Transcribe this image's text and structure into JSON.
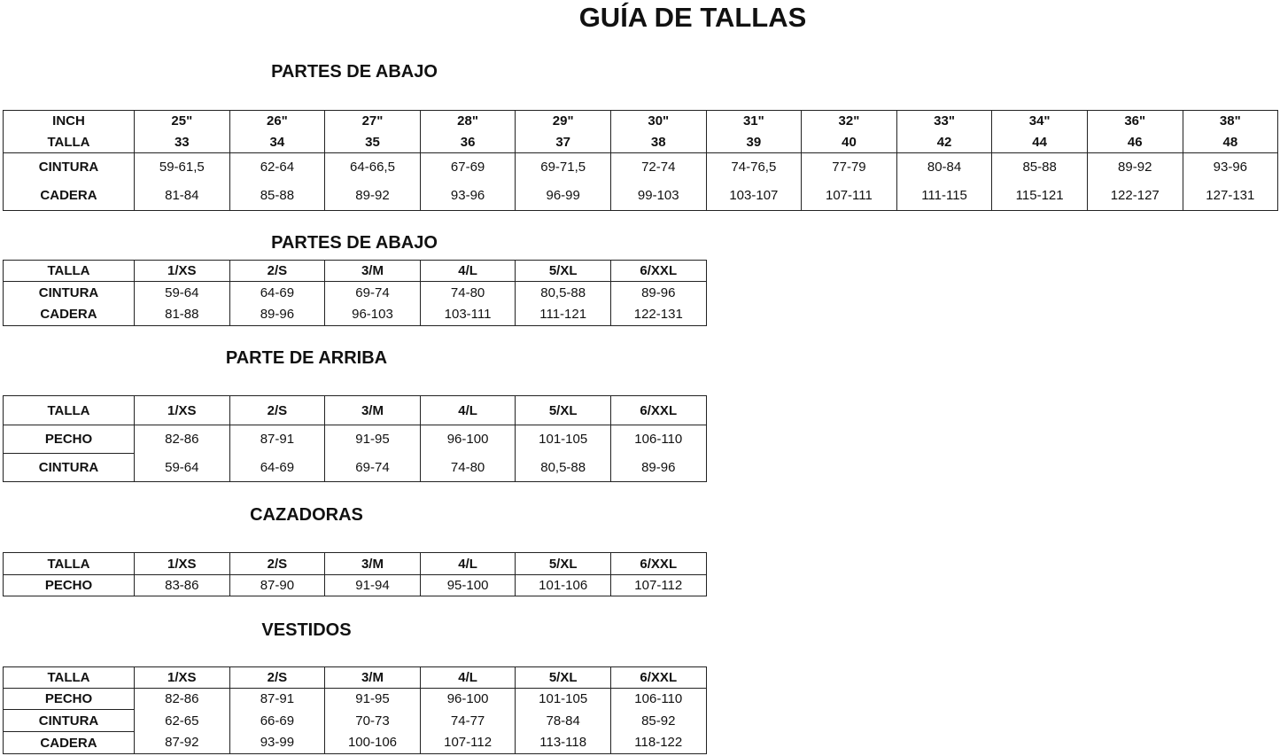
{
  "title": "GUÍA DE TALLAS",
  "sections": [
    {
      "heading": "PARTES DE ABAJO",
      "rows": [
        [
          "INCH",
          "25\"",
          "26\"",
          "27\"",
          "28\"",
          "29\"",
          "30\"",
          "31\"",
          "32\"",
          "33\"",
          "34\"",
          "36\"",
          "38\""
        ],
        [
          "TALLA",
          "33",
          "34",
          "35",
          "36",
          "37",
          "38",
          "39",
          "40",
          "42",
          "44",
          "46",
          "48"
        ],
        [
          "CINTURA",
          "59-61,5",
          "62-64",
          "64-66,5",
          "67-69",
          "69-71,5",
          "72-74",
          "74-76,5",
          "77-79",
          "80-84",
          "85-88",
          "89-92",
          "93-96"
        ],
        [
          "CADERA",
          "81-84",
          "85-88",
          "89-92",
          "93-96",
          "96-99",
          "99-103",
          "103-107",
          "107-111",
          "111-115",
          "115-121",
          "122-127",
          "127-131"
        ]
      ]
    },
    {
      "heading": "PARTES DE ABAJO",
      "rows": [
        [
          "TALLA",
          "1/XS",
          "2/S",
          "3/M",
          "4/L",
          "5/XL",
          "6/XXL"
        ],
        [
          "CINTURA",
          "59-64",
          "64-69",
          "69-74",
          "74-80",
          "80,5-88",
          "89-96"
        ],
        [
          "CADERA",
          "81-88",
          "89-96",
          "96-103",
          "103-111",
          "111-121",
          "122-131"
        ]
      ]
    },
    {
      "heading": "PARTE DE ARRIBA",
      "rows": [
        [
          "TALLA",
          "1/XS",
          "2/S",
          "3/M",
          "4/L",
          "5/XL",
          "6/XXL"
        ],
        [
          "PECHO",
          "82-86",
          "87-91",
          "91-95",
          "96-100",
          "101-105",
          "106-110"
        ],
        [
          "CINTURA",
          "59-64",
          "64-69",
          "69-74",
          "74-80",
          "80,5-88",
          "89-96"
        ]
      ]
    },
    {
      "heading": "CAZADORAS",
      "rows": [
        [
          "TALLA",
          "1/XS",
          "2/S",
          "3/M",
          "4/L",
          "5/XL",
          "6/XXL"
        ],
        [
          "PECHO",
          "83-86",
          "87-90",
          "91-94",
          "95-100",
          "101-106",
          "107-112"
        ]
      ]
    },
    {
      "heading": "VESTIDOS",
      "rows": [
        [
          "TALLA",
          "1/XS",
          "2/S",
          "3/M",
          "4/L",
          "5/XL",
          "6/XXL"
        ],
        [
          "PECHO",
          "82-86",
          "87-91",
          "91-95",
          "96-100",
          "101-105",
          "106-110"
        ],
        [
          "CINTURA",
          "62-65",
          "66-69",
          "70-73",
          "74-77",
          "78-84",
          "85-92"
        ],
        [
          "CADERA",
          "87-92",
          "93-99",
          "100-106",
          "107-112",
          "113-118",
          "118-122"
        ]
      ]
    }
  ]
}
